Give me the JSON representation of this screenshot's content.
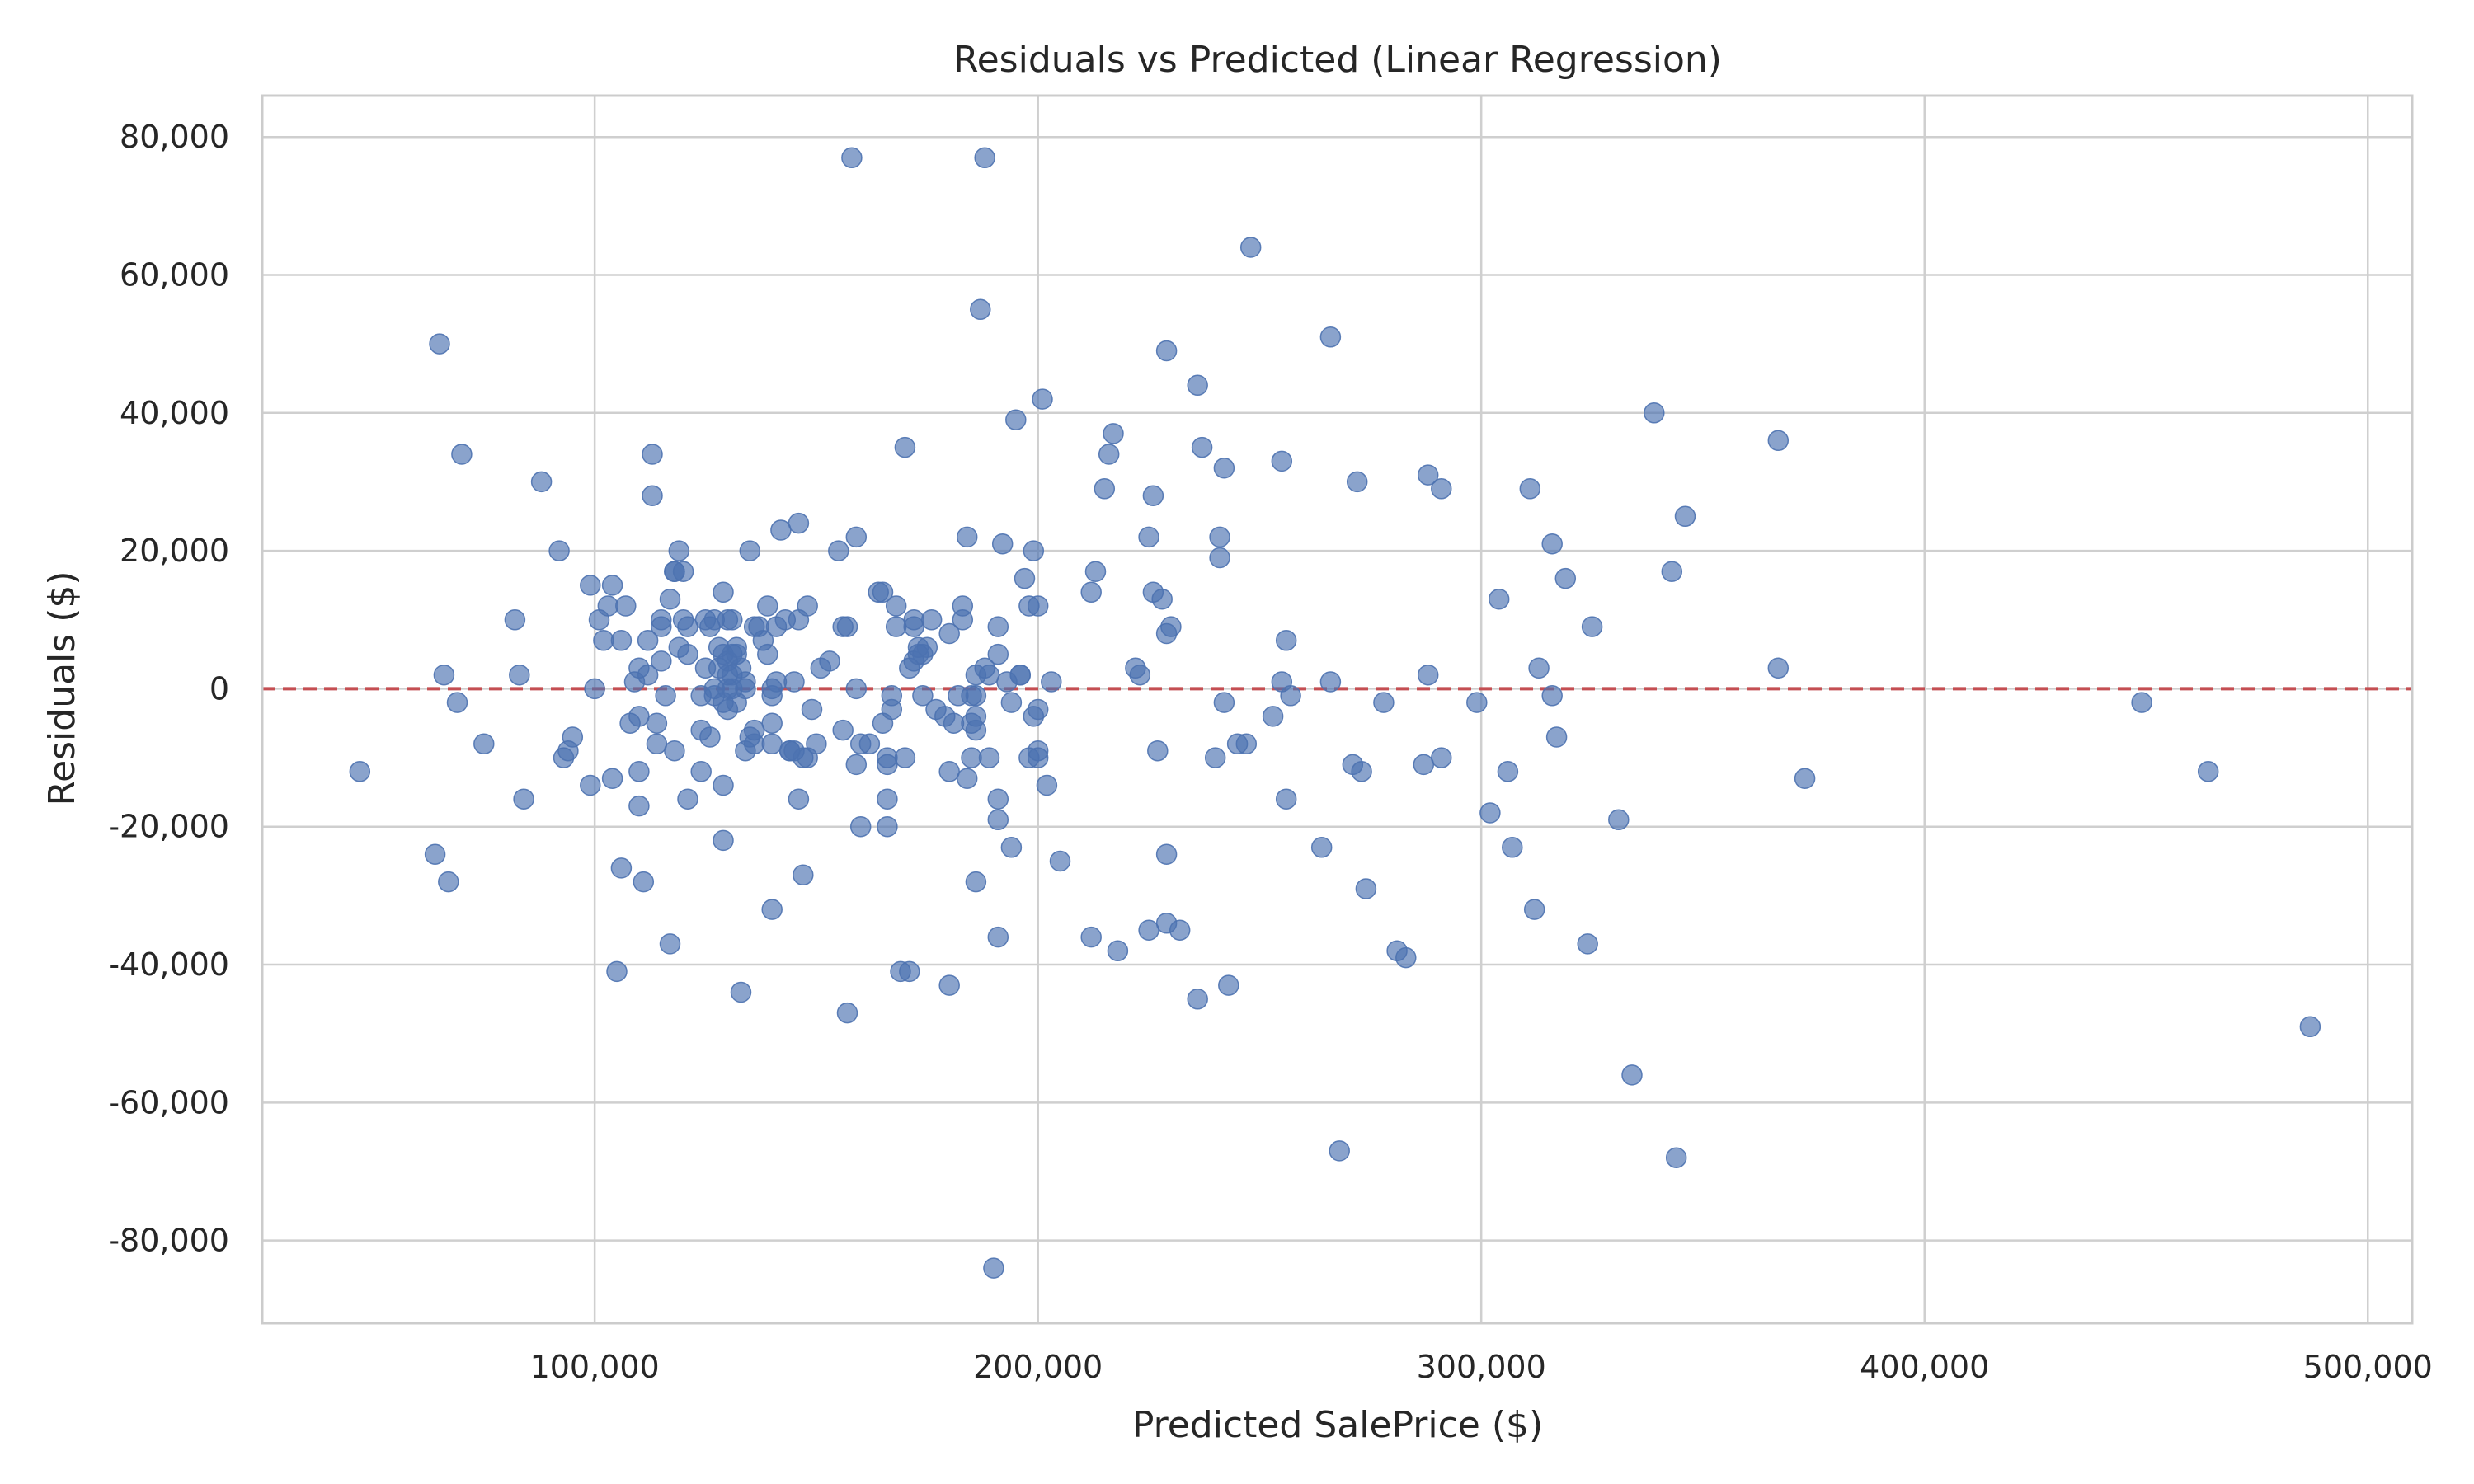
{
  "colors": {
    "background": "#ffffff",
    "grid": "#cfcfcf",
    "frame": "#cccccc",
    "point_fill": "#4c72b0",
    "reference_line": "#c44e52",
    "text": "#262626"
  },
  "chart_data": {
    "type": "scatter",
    "title": "Residuals vs Predicted (Linear Regression)",
    "xlabel": "Predicted SalePrice ($)",
    "ylabel": "Residuals ($)",
    "xlim": [
      25000,
      510000
    ],
    "ylim": [
      -92000,
      86000
    ],
    "xticks": [
      100000,
      200000,
      300000,
      400000,
      500000
    ],
    "xtick_labels": [
      "100,000",
      "200,000",
      "300,000",
      "400,000",
      "500,000"
    ],
    "yticks": [
      -80000,
      -60000,
      -40000,
      -20000,
      0,
      20000,
      40000,
      60000,
      80000
    ],
    "ytick_labels": [
      "-80,000",
      "-60,000",
      "-40,000",
      "-20,000",
      "0",
      "20,000",
      "40,000",
      "60,000",
      "80,000"
    ],
    "grid": true,
    "legend": "none",
    "marker": "circle",
    "marker_alpha": 0.65,
    "reference_line": {
      "y": 0,
      "style": "dashed"
    },
    "series": [
      {
        "points": [
          [
            47000,
            -12000
          ],
          [
            64000,
            -24000
          ],
          [
            65000,
            50000
          ],
          [
            66000,
            2000
          ],
          [
            67000,
            -28000
          ],
          [
            69000,
            -2000
          ],
          [
            70000,
            34000
          ],
          [
            75000,
            -8000
          ],
          [
            82000,
            10000
          ],
          [
            83000,
            2000
          ],
          [
            84000,
            -16000
          ],
          [
            88000,
            30000
          ],
          [
            92000,
            20000
          ],
          [
            93000,
            -10000
          ],
          [
            94000,
            -9000
          ],
          [
            95000,
            -7000
          ],
          [
            99000,
            15000
          ],
          [
            99000,
            -14000
          ],
          [
            100000,
            0
          ],
          [
            101000,
            10000
          ],
          [
            102000,
            7000
          ],
          [
            103000,
            12000
          ],
          [
            104000,
            15000
          ],
          [
            104000,
            -13000
          ],
          [
            105000,
            -41000
          ],
          [
            106000,
            7000
          ],
          [
            106000,
            -26000
          ],
          [
            107000,
            12000
          ],
          [
            108000,
            -5000
          ],
          [
            109000,
            1000
          ],
          [
            110000,
            -4000
          ],
          [
            110000,
            -12000
          ],
          [
            110000,
            3000
          ],
          [
            110000,
            -17000
          ],
          [
            111000,
            -28000
          ],
          [
            112000,
            2000
          ],
          [
            112000,
            7000
          ],
          [
            113000,
            28000
          ],
          [
            113000,
            34000
          ],
          [
            114000,
            -5000
          ],
          [
            114000,
            -8000
          ],
          [
            115000,
            4000
          ],
          [
            115000,
            9000
          ],
          [
            115000,
            10000
          ],
          [
            116000,
            -1000
          ],
          [
            117000,
            13000
          ],
          [
            117000,
            -37000
          ],
          [
            118000,
            17000
          ],
          [
            118000,
            17000
          ],
          [
            118000,
            -9000
          ],
          [
            119000,
            6000
          ],
          [
            119000,
            20000
          ],
          [
            120000,
            17000
          ],
          [
            120000,
            10000
          ],
          [
            121000,
            -16000
          ],
          [
            121000,
            5000
          ],
          [
            121000,
            9000
          ],
          [
            124000,
            -1000
          ],
          [
            124000,
            -6000
          ],
          [
            124000,
            -12000
          ],
          [
            125000,
            3000
          ],
          [
            125000,
            10000
          ],
          [
            126000,
            9000
          ],
          [
            126000,
            -7000
          ],
          [
            127000,
            10000
          ],
          [
            127000,
            0
          ],
          [
            127000,
            -1000
          ],
          [
            128000,
            6000
          ],
          [
            128000,
            3000
          ],
          [
            129000,
            -2000
          ],
          [
            129000,
            5000
          ],
          [
            129000,
            -14000
          ],
          [
            129000,
            -22000
          ],
          [
            129000,
            14000
          ],
          [
            130000,
            4000
          ],
          [
            130000,
            2000
          ],
          [
            130000,
            10000
          ],
          [
            130000,
            0
          ],
          [
            130000,
            -3000
          ],
          [
            131000,
            5000
          ],
          [
            131000,
            0
          ],
          [
            131000,
            2000
          ],
          [
            131000,
            10000
          ],
          [
            132000,
            5000
          ],
          [
            132000,
            -2000
          ],
          [
            132000,
            6000
          ],
          [
            133000,
            3000
          ],
          [
            133000,
            -44000
          ],
          [
            134000,
            -9000
          ],
          [
            134000,
            1000
          ],
          [
            134000,
            0
          ],
          [
            135000,
            -7000
          ],
          [
            135000,
            20000
          ],
          [
            136000,
            9000
          ],
          [
            136000,
            -6000
          ],
          [
            136000,
            -8000
          ],
          [
            137000,
            9000
          ],
          [
            138000,
            7000
          ],
          [
            139000,
            5000
          ],
          [
            139000,
            12000
          ],
          [
            140000,
            -8000
          ],
          [
            140000,
            -5000
          ],
          [
            140000,
            -1000
          ],
          [
            140000,
            0
          ],
          [
            140000,
            -32000
          ],
          [
            141000,
            9000
          ],
          [
            141000,
            1000
          ],
          [
            142000,
            23000
          ],
          [
            143000,
            10000
          ],
          [
            144000,
            -9000
          ],
          [
            144000,
            -9000
          ],
          [
            145000,
            1000
          ],
          [
            145000,
            -9000
          ],
          [
            146000,
            -16000
          ],
          [
            146000,
            10000
          ],
          [
            146000,
            24000
          ],
          [
            147000,
            -10000
          ],
          [
            147000,
            -27000
          ],
          [
            148000,
            12000
          ],
          [
            148000,
            -10000
          ],
          [
            149000,
            -3000
          ],
          [
            150000,
            -8000
          ],
          [
            151000,
            3000
          ],
          [
            153000,
            4000
          ],
          [
            155000,
            20000
          ],
          [
            156000,
            -6000
          ],
          [
            156000,
            9000
          ],
          [
            157000,
            -47000
          ],
          [
            157000,
            9000
          ],
          [
            158000,
            77000
          ],
          [
            159000,
            -11000
          ],
          [
            159000,
            0
          ],
          [
            159000,
            22000
          ],
          [
            160000,
            -8000
          ],
          [
            160000,
            -20000
          ],
          [
            162000,
            -8000
          ],
          [
            164000,
            14000
          ],
          [
            165000,
            -5000
          ],
          [
            165000,
            14000
          ],
          [
            166000,
            -10000
          ],
          [
            166000,
            -20000
          ],
          [
            166000,
            -16000
          ],
          [
            166000,
            -11000
          ],
          [
            167000,
            -1000
          ],
          [
            167000,
            -3000
          ],
          [
            168000,
            9000
          ],
          [
            168000,
            12000
          ],
          [
            169000,
            -41000
          ],
          [
            170000,
            -10000
          ],
          [
            170000,
            35000
          ],
          [
            171000,
            3000
          ],
          [
            171000,
            -41000
          ],
          [
            172000,
            4000
          ],
          [
            172000,
            10000
          ],
          [
            172000,
            9000
          ],
          [
            173000,
            6000
          ],
          [
            173000,
            5000
          ],
          [
            174000,
            -1000
          ],
          [
            174000,
            5000
          ],
          [
            175000,
            6000
          ],
          [
            176000,
            10000
          ],
          [
            177000,
            -3000
          ],
          [
            179000,
            -4000
          ],
          [
            180000,
            8000
          ],
          [
            180000,
            -43000
          ],
          [
            180000,
            -12000
          ],
          [
            181000,
            -5000
          ],
          [
            182000,
            -1000
          ],
          [
            183000,
            10000
          ],
          [
            183000,
            12000
          ],
          [
            184000,
            -13000
          ],
          [
            184000,
            22000
          ],
          [
            185000,
            -10000
          ],
          [
            185000,
            -1000
          ],
          [
            185000,
            -5000
          ],
          [
            186000,
            -28000
          ],
          [
            186000,
            2000
          ],
          [
            186000,
            -1000
          ],
          [
            186000,
            -4000
          ],
          [
            186000,
            -6000
          ],
          [
            187000,
            55000
          ],
          [
            188000,
            77000
          ],
          [
            188000,
            3000
          ],
          [
            189000,
            -10000
          ],
          [
            189000,
            2000
          ],
          [
            190000,
            -84000
          ],
          [
            191000,
            -16000
          ],
          [
            191000,
            -19000
          ],
          [
            191000,
            5000
          ],
          [
            191000,
            9000
          ],
          [
            191000,
            -36000
          ],
          [
            192000,
            21000
          ],
          [
            193000,
            1000
          ],
          [
            194000,
            -23000
          ],
          [
            194000,
            -2000
          ],
          [
            195000,
            39000
          ],
          [
            196000,
            2000
          ],
          [
            196000,
            2000
          ],
          [
            197000,
            16000
          ],
          [
            198000,
            -10000
          ],
          [
            198000,
            12000
          ],
          [
            199000,
            -4000
          ],
          [
            199000,
            20000
          ],
          [
            200000,
            -9000
          ],
          [
            200000,
            -3000
          ],
          [
            200000,
            -10000
          ],
          [
            200000,
            12000
          ],
          [
            201000,
            42000
          ],
          [
            202000,
            -14000
          ],
          [
            203000,
            1000
          ],
          [
            205000,
            -25000
          ],
          [
            212000,
            -36000
          ],
          [
            212000,
            14000
          ],
          [
            213000,
            17000
          ],
          [
            215000,
            29000
          ],
          [
            216000,
            34000
          ],
          [
            217000,
            37000
          ],
          [
            218000,
            -38000
          ],
          [
            222000,
            3000
          ],
          [
            223000,
            2000
          ],
          [
            225000,
            22000
          ],
          [
            225000,
            -35000
          ],
          [
            226000,
            28000
          ],
          [
            226000,
            14000
          ],
          [
            227000,
            -9000
          ],
          [
            228000,
            13000
          ],
          [
            229000,
            8000
          ],
          [
            229000,
            49000
          ],
          [
            229000,
            -34000
          ],
          [
            229000,
            -24000
          ],
          [
            230000,
            9000
          ],
          [
            232000,
            -35000
          ],
          [
            236000,
            44000
          ],
          [
            236000,
            -45000
          ],
          [
            237000,
            35000
          ],
          [
            240000,
            -10000
          ],
          [
            241000,
            19000
          ],
          [
            241000,
            22000
          ],
          [
            242000,
            -2000
          ],
          [
            242000,
            32000
          ],
          [
            243000,
            -43000
          ],
          [
            245000,
            -8000
          ],
          [
            247000,
            -8000
          ],
          [
            248000,
            64000
          ],
          [
            253000,
            -4000
          ],
          [
            255000,
            33000
          ],
          [
            255000,
            1000
          ],
          [
            256000,
            7000
          ],
          [
            256000,
            -16000
          ],
          [
            257000,
            -1000
          ],
          [
            264000,
            -23000
          ],
          [
            266000,
            51000
          ],
          [
            266000,
            1000
          ],
          [
            268000,
            -67000
          ],
          [
            271000,
            -11000
          ],
          [
            272000,
            30000
          ],
          [
            273000,
            -12000
          ],
          [
            274000,
            -29000
          ],
          [
            278000,
            -2000
          ],
          [
            281000,
            -38000
          ],
          [
            283000,
            -39000
          ],
          [
            287000,
            -11000
          ],
          [
            288000,
            31000
          ],
          [
            288000,
            2000
          ],
          [
            291000,
            -10000
          ],
          [
            291000,
            29000
          ],
          [
            299000,
            -2000
          ],
          [
            302000,
            -18000
          ],
          [
            304000,
            13000
          ],
          [
            306000,
            -12000
          ],
          [
            307000,
            -23000
          ],
          [
            311000,
            29000
          ],
          [
            312000,
            -32000
          ],
          [
            313000,
            3000
          ],
          [
            316000,
            21000
          ],
          [
            316000,
            -1000
          ],
          [
            317000,
            -7000
          ],
          [
            319000,
            16000
          ],
          [
            324000,
            -37000
          ],
          [
            325000,
            9000
          ],
          [
            331000,
            -19000
          ],
          [
            334000,
            -56000
          ],
          [
            339000,
            40000
          ],
          [
            343000,
            17000
          ],
          [
            344000,
            -68000
          ],
          [
            346000,
            25000
          ],
          [
            367000,
            36000
          ],
          [
            367000,
            3000
          ],
          [
            373000,
            -13000
          ],
          [
            449000,
            -2000
          ],
          [
            464000,
            -12000
          ],
          [
            487000,
            -49000
          ]
        ]
      }
    ]
  }
}
